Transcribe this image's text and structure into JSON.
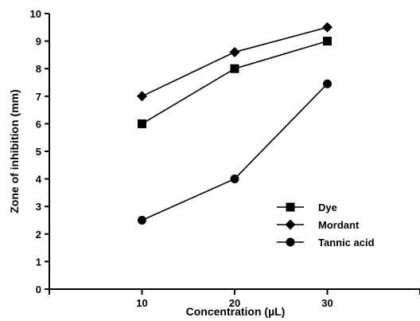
{
  "chart_data": {
    "type": "line",
    "title": "",
    "xlabel": "Concentration (µL)",
    "ylabel": "Zone of inhibition (mm)",
    "x": [
      10,
      20,
      30
    ],
    "x_tick_labels": [
      "10",
      "20",
      "30"
    ],
    "y_tick_labels": [
      "0",
      "1",
      "2",
      "3",
      "4",
      "5",
      "6",
      "7",
      "8",
      "9",
      "10"
    ],
    "xlim": [
      0,
      40
    ],
    "ylim": [
      0,
      10
    ],
    "grid": false,
    "legend_position": "lower-right",
    "series": [
      {
        "name": "Dye",
        "marker": "square",
        "values": [
          6,
          8,
          9
        ]
      },
      {
        "name": "Mordant",
        "marker": "diamond",
        "values": [
          7,
          8.6,
          9.5
        ]
      },
      {
        "name": "Tannic acid",
        "marker": "circle",
        "values": [
          2.5,
          4,
          7.45
        ]
      }
    ],
    "color": "#000000"
  }
}
